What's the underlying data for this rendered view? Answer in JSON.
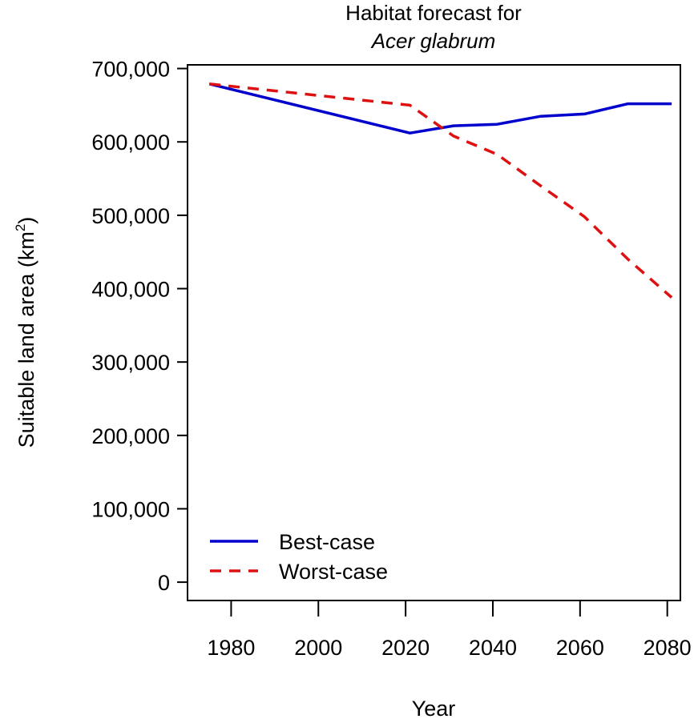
{
  "chart_data": {
    "type": "line",
    "title": "Habitat forecast for",
    "subtitle": "Acer glabrum",
    "xlabel": "Year",
    "ylabel": {
      "main": "Suitable land area (km",
      "superscript": "2",
      "close": ")"
    },
    "xlim": [
      1970,
      2083
    ],
    "ylim": [
      -25000,
      705000
    ],
    "x_ticks": [
      1980,
      2000,
      2020,
      2040,
      2060,
      2080
    ],
    "x_tick_labels": [
      "1980",
      "2000",
      "2020",
      "2040",
      "2060",
      "2080"
    ],
    "y_ticks": [
      0,
      100000,
      200000,
      300000,
      400000,
      500000,
      600000,
      700000
    ],
    "y_tick_labels": [
      "0",
      "100,000",
      "200,000",
      "300,000",
      "400,000",
      "500,000",
      "600,000",
      "700,000"
    ],
    "grid": false,
    "legend_position": "bottom-left",
    "series": [
      {
        "name": "Best-case",
        "color": "#0000cc",
        "style": "solid",
        "x": [
          1975,
          2021,
          2031,
          2041,
          2051,
          2061,
          2071,
          2081
        ],
        "y": [
          679000,
          612000,
          622000,
          624000,
          635000,
          638000,
          652000,
          652000
        ]
      },
      {
        "name": "Worst-case",
        "color": "#dd1111",
        "style": "dashed",
        "x": [
          1975,
          2021,
          2031,
          2041,
          2051,
          2061,
          2071,
          2081
        ],
        "y": [
          679000,
          650000,
          608000,
          583000,
          540000,
          498000,
          440000,
          388000
        ]
      }
    ]
  }
}
